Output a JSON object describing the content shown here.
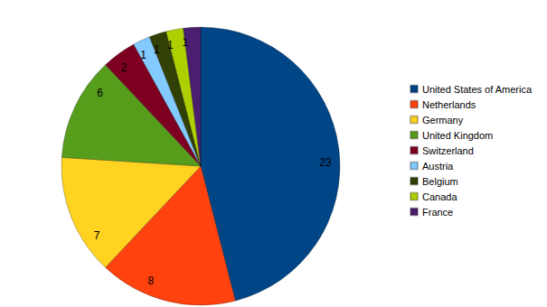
{
  "chart_data": {
    "type": "pie",
    "categories": [
      "United States of America",
      "Netherlands",
      "Germany",
      "United Kingdom",
      "Switzerland",
      "Austria",
      "Belgium",
      "Canada",
      "France"
    ],
    "values": [
      23,
      8,
      7,
      6,
      2,
      1,
      1,
      1,
      1
    ],
    "colors": [
      "#004586",
      "#ff420e",
      "#ffd320",
      "#579d1c",
      "#7e0021",
      "#83caff",
      "#314004",
      "#aecf00",
      "#4b1f6f"
    ],
    "data_labels": true,
    "legend": "right"
  }
}
